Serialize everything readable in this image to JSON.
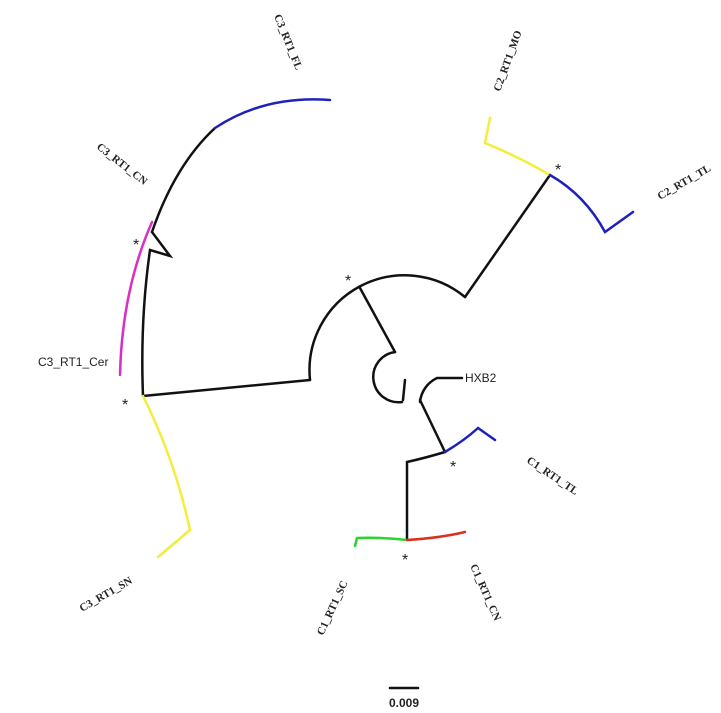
{
  "tree": {
    "labels": [
      "C3_RT1_FL",
      "C2_RT1_MO",
      "C2_RT1_TL",
      "C3_RT1_CN",
      "C3_RT1_Cer",
      "HXB2",
      "C1_RT1_TL",
      "C3_RT1_SN",
      "C1_RT1_SC",
      "C1_RT1_CN"
    ],
    "support_markers": [
      "*",
      "*",
      "*",
      "*",
      "*",
      "*"
    ],
    "scale_bar": "0.009"
  }
}
